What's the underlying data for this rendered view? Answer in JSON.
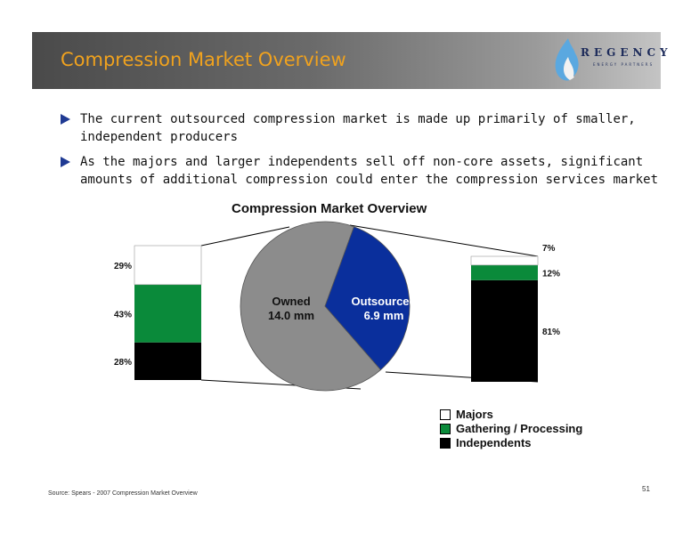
{
  "header": {
    "title": "Compression Market Overview",
    "logo_text": "REGENCY",
    "logo_subtext": "ENERGY PARTNERS"
  },
  "bullets": [
    "The current outsourced compression market is made up primarily of smaller, independent producers",
    "As the majors and larger independents sell off non-core assets, significant amounts of additional compression could enter the compression services market"
  ],
  "colors": {
    "title_orange": "#f0a21e",
    "bullet_blue": "#1f3a93",
    "owned_gray": "#8c8c8c",
    "outsourced_blue": "#0a2f9c",
    "majors": "#ffffff",
    "gathering": "#0a8a3a",
    "independents": "#000000"
  },
  "chart_data": {
    "type": "pie",
    "title": "Compression Market Overview",
    "pie": [
      {
        "label": "Owned",
        "value_label": "14.0 mm",
        "value": 14.0
      },
      {
        "label": "Outsourced",
        "value_label": "6.9 mm",
        "value": 6.9
      }
    ],
    "stacked_bars": [
      {
        "name": "Owned",
        "segments": [
          {
            "series": "Independents",
            "value": 28,
            "label": "28%"
          },
          {
            "series": "Gathering / Processing",
            "value": 43,
            "label": "43%"
          },
          {
            "series": "Majors",
            "value": 29,
            "label": "29%"
          }
        ]
      },
      {
        "name": "Outsourced",
        "segments": [
          {
            "series": "Independents",
            "value": 81,
            "label": "81%"
          },
          {
            "series": "Gathering / Processing",
            "value": 12,
            "label": "12%"
          },
          {
            "series": "Majors",
            "value": 7,
            "label": "7%"
          }
        ]
      }
    ],
    "legend": [
      "Majors",
      "Gathering / Processing",
      "Independents"
    ],
    "legend_placement": "bottom-right"
  },
  "footer": {
    "source": "Source: Spears - 2007 Compression Market Overview",
    "page_number": "51"
  }
}
